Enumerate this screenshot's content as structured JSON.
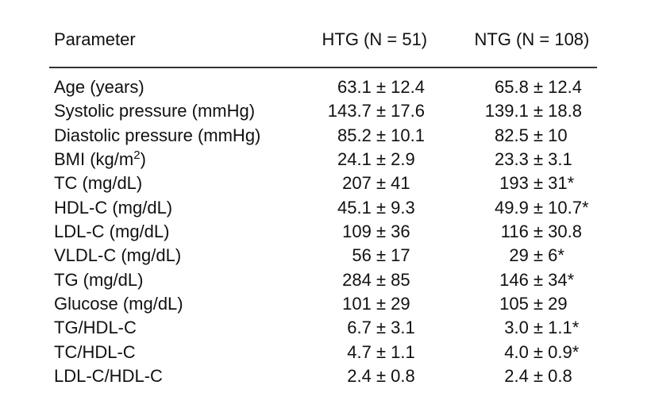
{
  "table": {
    "headers": [
      "Parameter",
      "HTG (N = 51)",
      "NTG (N = 108)"
    ],
    "rows": [
      [
        "Age (years)",
        "63.1 ± 12.4",
        "65.8 ± 12.4"
      ],
      [
        "Systolic pressure (mmHg)",
        "143.7 ± 17.6",
        "139.1 ± 18.8"
      ],
      [
        "Diastolic pressure (mmHg)",
        "85.2 ± 10.1",
        "82.5 ± 10"
      ],
      [
        [
          "BMI (kg/m",
          "2",
          ")"
        ],
        "24.1 ± 2.9",
        "23.3 ± 3.1"
      ],
      [
        "TC (mg/dL)",
        "207 ± 41",
        "193 ± 31*"
      ],
      [
        "HDL-C (mg/dL)",
        "45.1 ± 9.3",
        "49.9 ± 10.7*"
      ],
      [
        "LDL-C (mg/dL)",
        "109 ± 36",
        "116 ± 30.8"
      ],
      [
        "VLDL-C (mg/dL)",
        "56 ± 17",
        "29 ± 6*"
      ],
      [
        "TG (mg/dL)",
        "284 ± 85",
        "146 ± 34*"
      ],
      [
        "Glucose (mg/dL)",
        "101 ± 29",
        "105 ± 29"
      ],
      [
        "TG/HDL-C",
        "6.7 ± 3.1",
        "3.0 ± 1.1*"
      ],
      [
        "TC/HDL-C",
        "4.7 ± 1.1",
        "4.0 ± 0.9*"
      ],
      [
        "LDL-C/HDL-C",
        "2.4 ± 0.8",
        "2.4 ± 0.8"
      ]
    ]
  }
}
